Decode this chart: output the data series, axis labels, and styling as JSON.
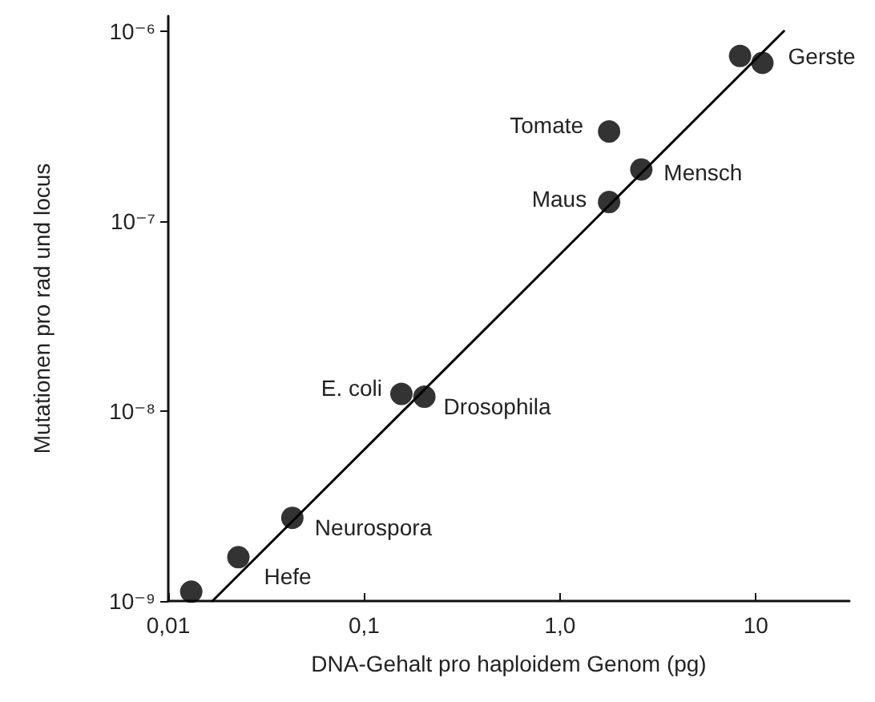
{
  "chart_data": {
    "type": "scatter",
    "xlabel": "DNA-Gehalt pro haploidem Genom (pg)",
    "ylabel": "Mutationen pro rad und locus",
    "log": "xy",
    "grid": false,
    "marker": "circle",
    "xlim": [
      0.01,
      30
    ],
    "ylim": [
      1e-09,
      1.2e-06
    ],
    "xticks": [
      {
        "value": 0.01,
        "label": "0,01"
      },
      {
        "value": 0.1,
        "label": "0,1"
      },
      {
        "value": 1,
        "label": "1,0"
      },
      {
        "value": 10,
        "label": "10"
      }
    ],
    "yticks": [
      {
        "value": 1e-09,
        "label": "10⁻⁹"
      },
      {
        "value": 1e-08,
        "label": "10⁻⁸"
      },
      {
        "value": 1e-07,
        "label": "10⁻⁷"
      },
      {
        "value": 1e-06,
        "label": "10⁻⁶"
      }
    ],
    "series": [
      {
        "color": "#000000",
        "x": [
          0.0131,
          0.0228,
          0.043,
          0.155,
          0.203,
          1.78,
          1.78,
          2.6,
          8.3,
          10.8
        ],
        "values": [
          1.12e-09,
          1.7e-09,
          2.74e-09,
          1.23e-08,
          1.19e-08,
          2.96e-07,
          1.26e-07,
          1.87e-07,
          7.4e-07,
          6.8e-07
        ]
      },
      {
        "type": "line",
        "color": "#000000",
        "marker": "none",
        "line_style": "solid",
        "x": [
          0.0168,
          13.9
        ],
        "values": [
          1e-09,
          1e-06
        ]
      }
    ],
    "annotations": [
      {
        "text": "Hefe",
        "x": 0.0228,
        "y": 1.7e-09
      },
      {
        "text": "Neurospora",
        "x": 0.043,
        "y": 2.74e-09
      },
      {
        "text": "E. coli",
        "x": 0.155,
        "y": 1.23e-08
      },
      {
        "text": "Drosophila",
        "x": 0.203,
        "y": 1.19e-08
      },
      {
        "text": "Tomate",
        "x": 1.78,
        "y": 2.96e-07
      },
      {
        "text": "Maus",
        "x": 1.78,
        "y": 1.26e-07
      },
      {
        "text": "Mensch",
        "x": 2.6,
        "y": 1.87e-07
      },
      {
        "text": "Gerste",
        "x": 10.8,
        "y": 6.8e-07
      }
    ]
  }
}
